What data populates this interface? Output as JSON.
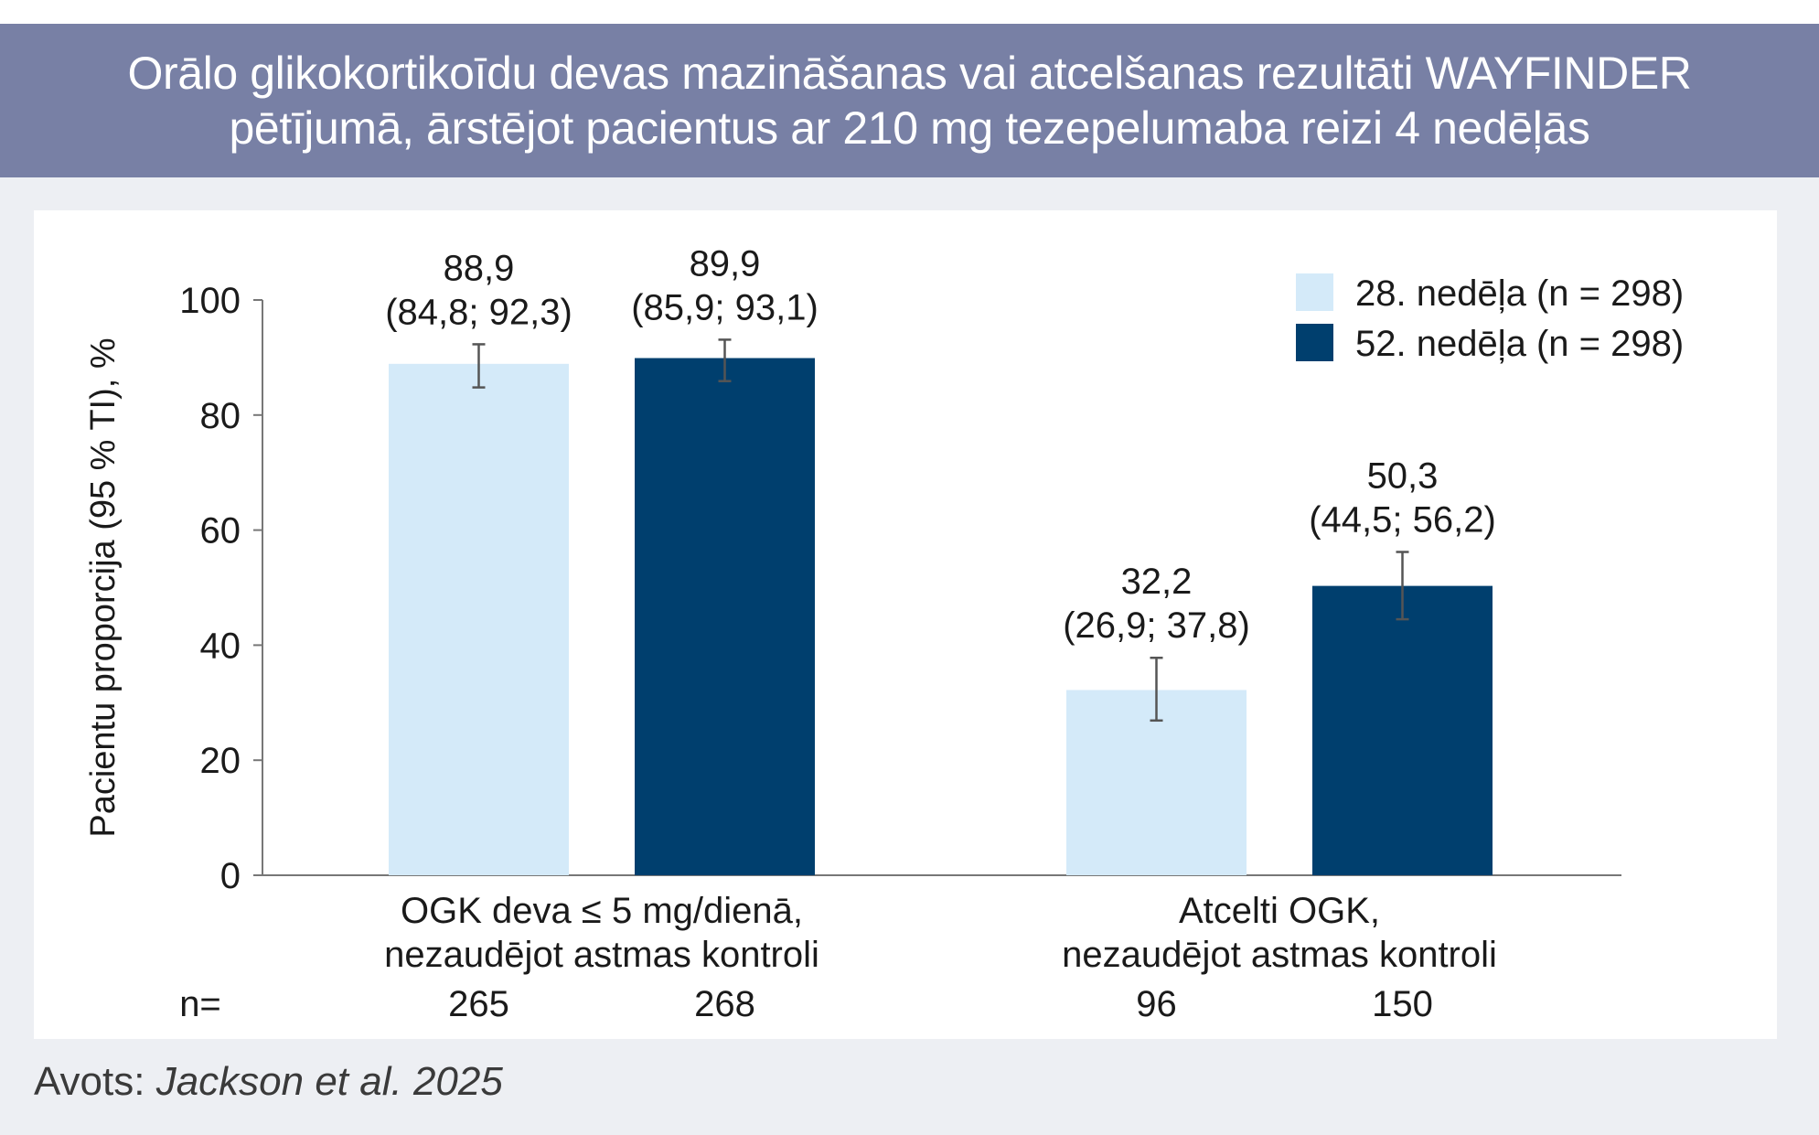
{
  "header": {
    "title_line1": "Orālo glikokortikoīdu devas mazināšanas vai atcelšanas rezultāti WAYFINDER",
    "title_line2": "pētījumā, ārstējot pacientus ar 210 mg tezepelumaba reizi 4 nedēļās"
  },
  "source": {
    "label": "Avots: ",
    "citation": "Jackson et al. 2025"
  },
  "n_label": "n=",
  "colors": {
    "week28": "#d4eaf9",
    "week52": "#003f6e",
    "header_bg": "#7880a5",
    "errorbar": "#555555"
  },
  "chart_data": {
    "type": "bar",
    "ylabel": "Pacientu proporcija (95 % TI), %",
    "ylim": [
      0,
      100
    ],
    "yticks": [
      "0",
      "20",
      "40",
      "60",
      "80",
      "100"
    ],
    "categories": [
      [
        "OGK deva ≤ 5 mg/dienā,",
        "nezaudējot astmas kontroli"
      ],
      [
        "Atcelti OGK,",
        "nezaudējot astmas kontroli"
      ]
    ],
    "series": [
      {
        "name": "28. nedēļa (n = 298)",
        "values": [
          88.9,
          32.2
        ],
        "ci_low": [
          84.8,
          26.9
        ],
        "ci_high": [
          92.3,
          37.8
        ],
        "value_labels": [
          "88,9",
          "32,2"
        ],
        "ci_labels": [
          "(84,8; 92,3)",
          "(26,9; 37,8)"
        ],
        "n": [
          "265",
          "96"
        ]
      },
      {
        "name": "52. nedēļa (n = 298)",
        "values": [
          89.9,
          50.3
        ],
        "ci_low": [
          85.9,
          44.5
        ],
        "ci_high": [
          93.1,
          56.2
        ],
        "value_labels": [
          "89,9",
          "50,3"
        ],
        "ci_labels": [
          "(85,9; 93,1)",
          "(44,5; 56,2)"
        ],
        "n": [
          "268",
          "150"
        ]
      }
    ],
    "legend": "top-right",
    "grid": false
  }
}
